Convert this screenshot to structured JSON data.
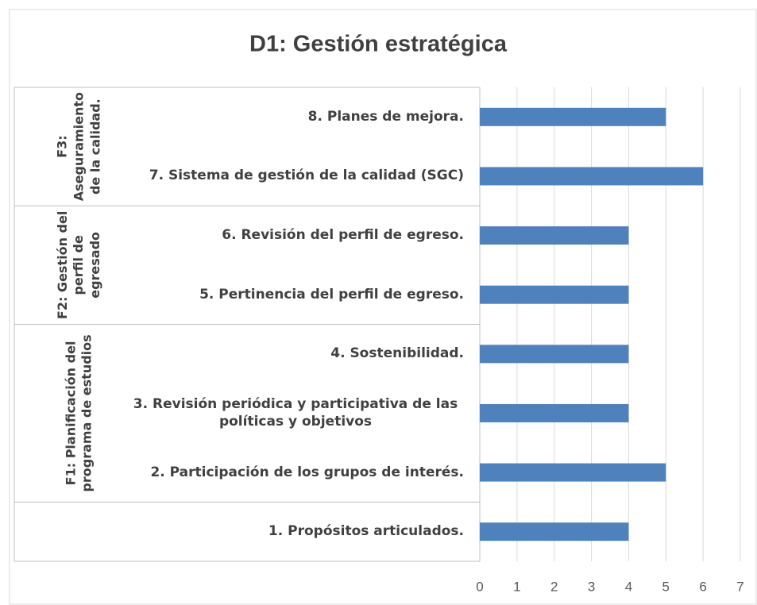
{
  "chart_data": {
    "type": "bar",
    "orientation": "horizontal",
    "title": "D1: Gestión estratégica",
    "categories": [
      "1. Propósitos articulados.",
      "2. Participación de los grupos de interés.",
      "3. Revisión periódica y participativa de las políticas y objetivos",
      "4. Sostenibilidad.",
      "5. Pertinencia del perfil de egreso.",
      "6. Revisión del perfil de egreso.",
      "7. Sistema de gestión de la calidad (SGC)",
      "8.  Planes de mejora."
    ],
    "category_groups": [
      null,
      "F1: Planificación del programa de estudios",
      "F1: Planificación del programa de estudios",
      "F1: Planificación del programa de estudios",
      "F2: Gestión del perfil de egresado",
      "F2: Gestión del perfil de egresado",
      "F3: Aseguramiento de la calidad.",
      "F3: Aseguramiento de la calidad."
    ],
    "values": [
      4,
      5,
      4,
      4,
      4,
      4,
      6,
      5
    ],
    "color": "#4f81bd",
    "xlim": [
      0,
      7
    ],
    "xticks": [
      0,
      1,
      2,
      3,
      4,
      5,
      6,
      7
    ],
    "grid": true
  }
}
